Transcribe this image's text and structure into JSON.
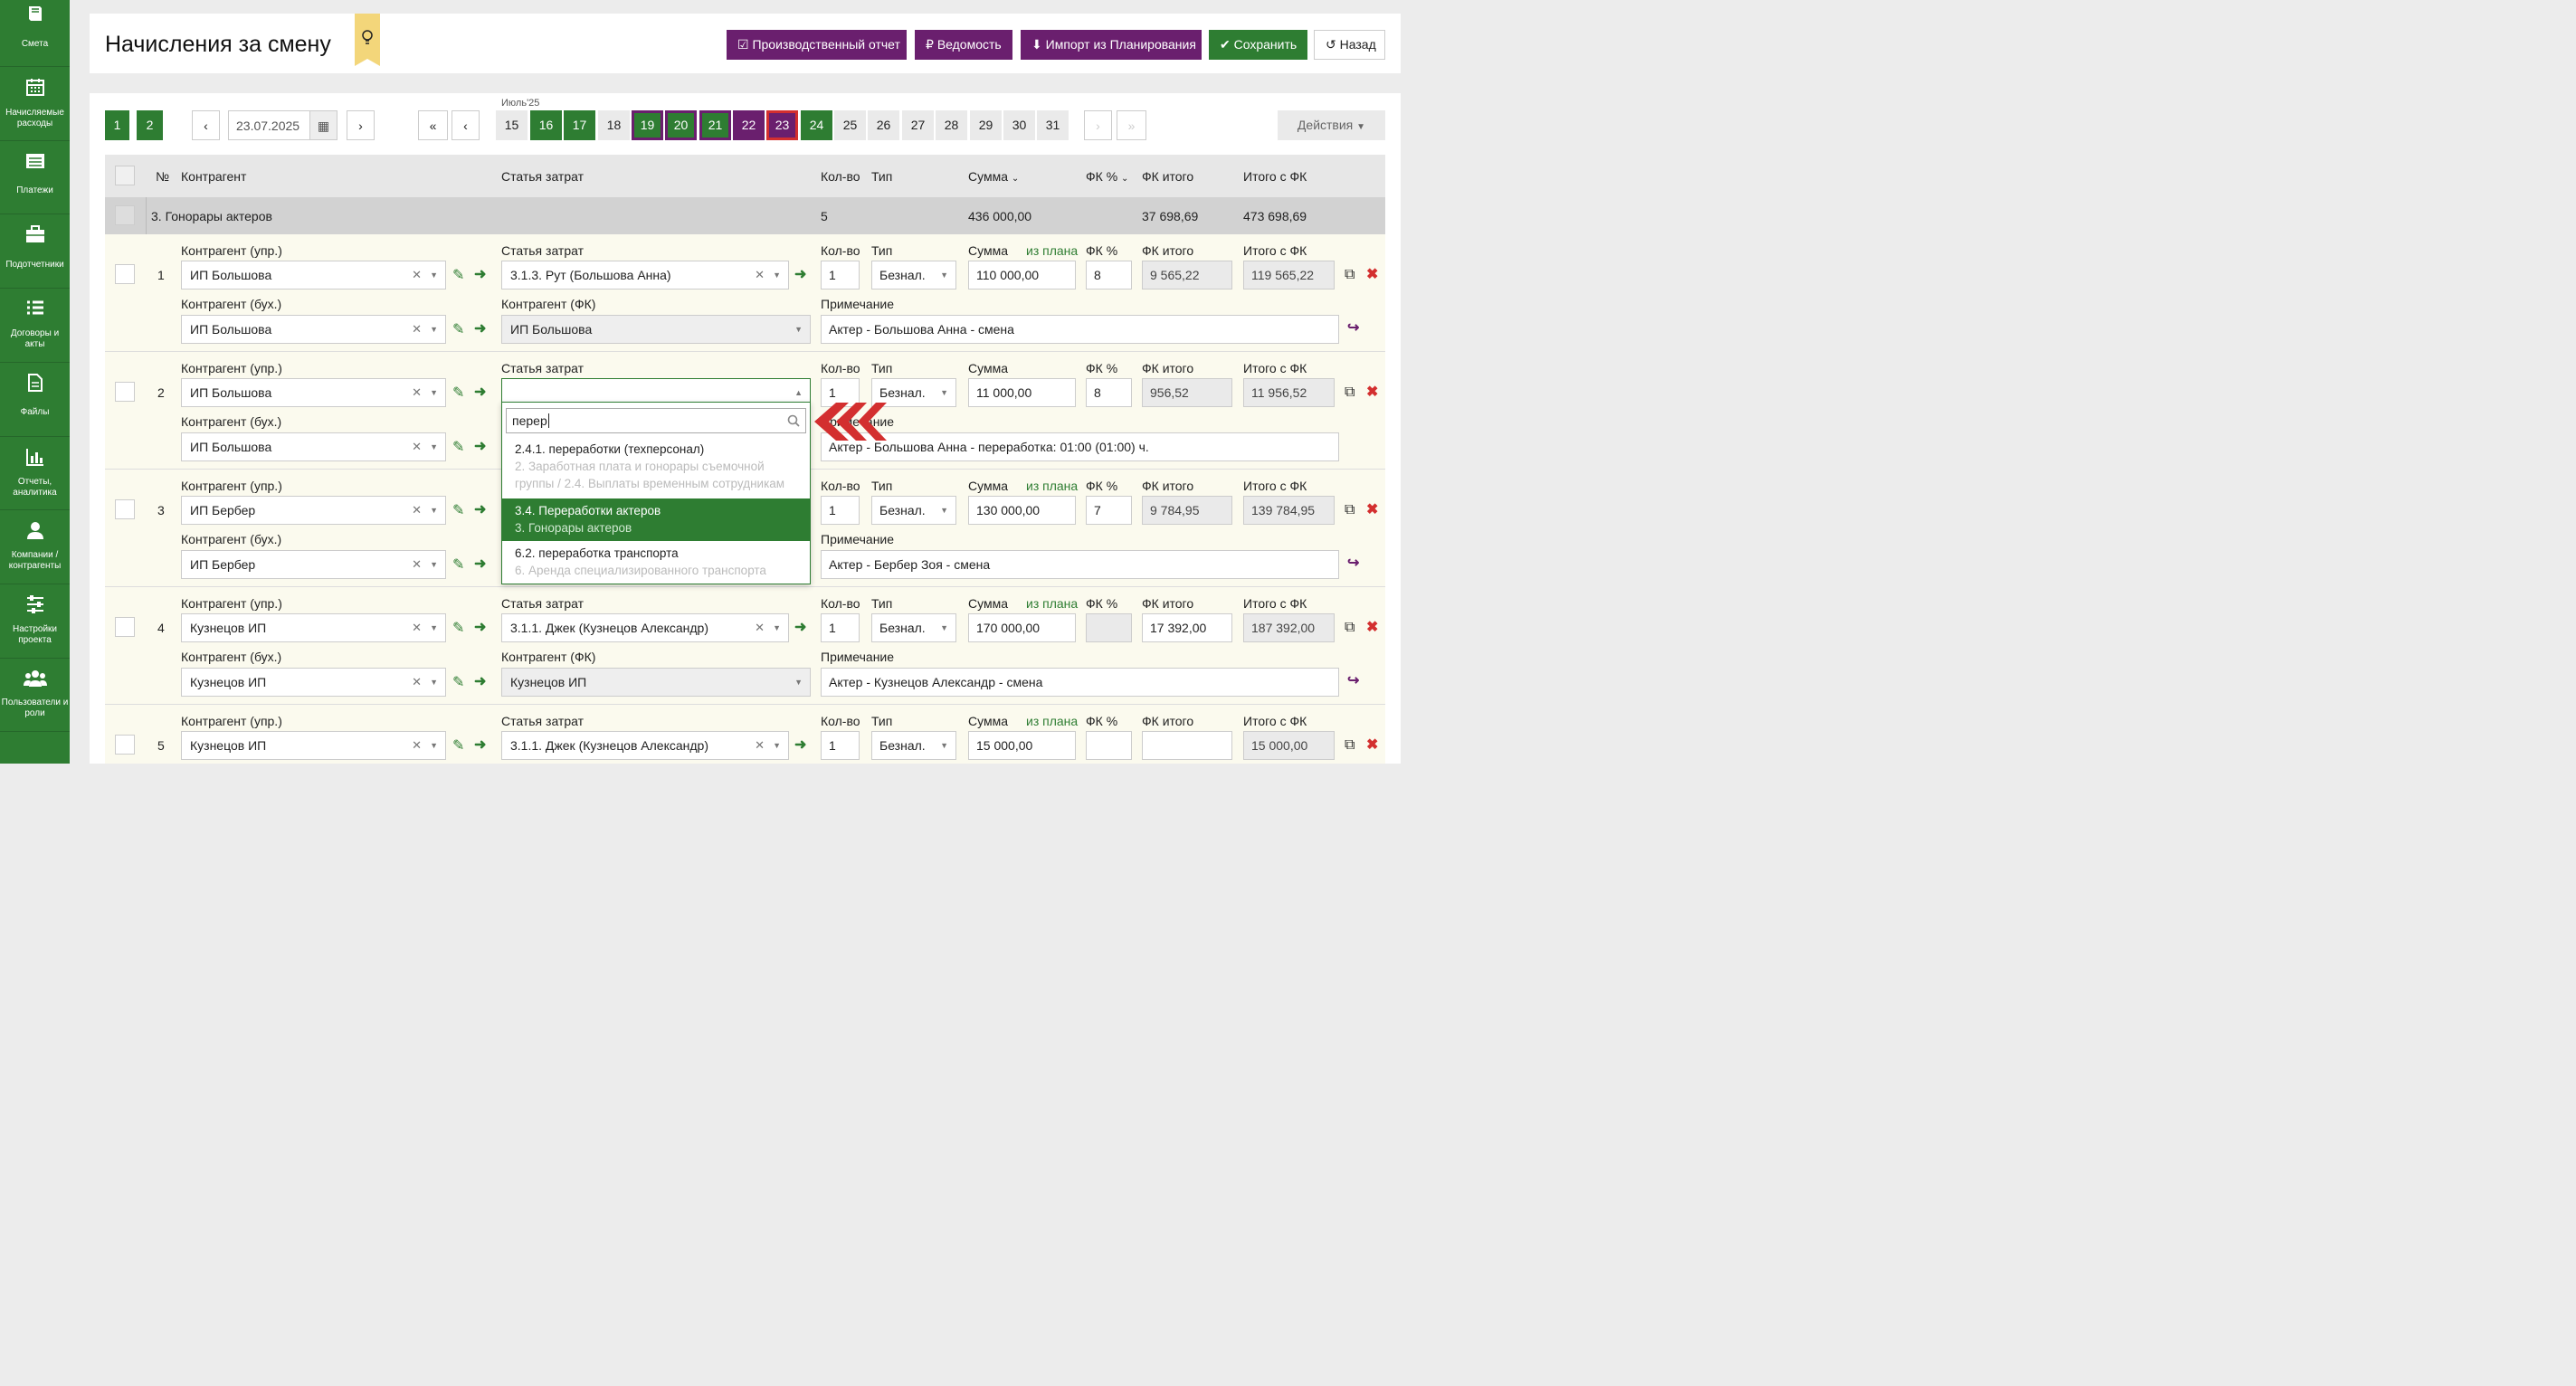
{
  "sidebar": {
    "items": [
      {
        "label": "Смета",
        "icon": "book-icon"
      },
      {
        "label": "Начисляемые расходы",
        "icon": "calendar-icon"
      },
      {
        "label": "Платежи",
        "icon": "list-icon"
      },
      {
        "label": "Подотчетники",
        "icon": "briefcase-icon"
      },
      {
        "label": "Договоры и акты",
        "icon": "list-icon"
      },
      {
        "label": "Файлы",
        "icon": "file-icon"
      },
      {
        "label": "Отчеты, аналитика",
        "icon": "chart-icon"
      },
      {
        "label": "Компании / контрагенты",
        "icon": "user-icon"
      },
      {
        "label": "Настройки проекта",
        "icon": "sliders-icon"
      },
      {
        "label": "Пользователи и роли",
        "icon": "users-icon"
      }
    ]
  },
  "header": {
    "title": "Начисления за смену",
    "btn_report": "Производственный отчет",
    "btn_sheet": "Ведомость",
    "btn_import": "Импорт из Планирования",
    "btn_save": "Сохранить",
    "btn_back": "Назад"
  },
  "toolbar": {
    "page1": "1",
    "page2": "2",
    "prev": "‹",
    "next": "›",
    "first": "«",
    "prev2": "‹",
    "next2": "›",
    "last": "»",
    "date": "23.07.2025",
    "month": "Июль'25",
    "actions": "Действия"
  },
  "days": [
    "15",
    "16",
    "17",
    "18",
    "19",
    "20",
    "21",
    "22",
    "23",
    "24",
    "25",
    "26",
    "27",
    "28",
    "29",
    "30",
    "31"
  ],
  "table": {
    "h_num": "№",
    "h_contractor": "Контрагент",
    "h_cost": "Статья затрат",
    "h_qty": "Кол-во",
    "h_type": "Тип",
    "h_sum": "Сумма",
    "h_fk": "ФК %",
    "h_fk_total": "ФК итого",
    "h_total": "Итого с ФК"
  },
  "group": {
    "name": "3. Гонорары актеров",
    "qty": "5",
    "sum": "436 000,00",
    "fk_total": "37 698,69",
    "total": "473 698,69"
  },
  "labels": {
    "contr_upr": "Контрагент (упр.)",
    "contr_buh": "Контрагент (бух.)",
    "cost": "Статья затрат",
    "contr_fk": "Контрагент (ФК)",
    "qty": "Кол-во",
    "type": "Тип",
    "sum": "Сумма",
    "from_plan": "из плана",
    "fk": "ФК %",
    "fk_total": "ФК итого",
    "total": "Итого с ФК",
    "note": "Примечание"
  },
  "rows": [
    {
      "n": "1",
      "upr": "ИП Большова",
      "buh": "ИП Большова",
      "cost": "3.1.3. Рут (Большова Анна)",
      "fkc": "ИП Большова",
      "qty": "1",
      "type": "Безнал.",
      "sum": "110 000,00",
      "fk": "8",
      "fk_total": "9 565,22",
      "total": "119 565,22",
      "note": "Актер - Большова Анна - смена"
    },
    {
      "n": "2",
      "upr": "ИП Большова",
      "buh": "ИП Большова",
      "cost": "",
      "fkc": "",
      "qty": "1",
      "type": "Безнал.",
      "sum": "11 000,00",
      "fk": "8",
      "fk_total": "956,52",
      "total": "11 956,52",
      "note": "Актер - Большова Анна - переработка: 01:00 (01:00) ч.",
      "note_label": "Примечание"
    },
    {
      "n": "3",
      "upr": "ИП Бербер",
      "buh": "ИП Бербер",
      "cost": "",
      "fkc": "",
      "qty": "1",
      "type": "Безнал.",
      "sum": "130 000,00",
      "fk": "7",
      "fk_total": "9 784,95",
      "total": "139 784,95",
      "note": "Актер - Бербер Зоя - смена"
    },
    {
      "n": "4",
      "upr": "Кузнецов ИП",
      "buh": "Кузнецов ИП",
      "cost": "3.1.1. Джек (Кузнецов Александр)",
      "fkc": "Кузнецов ИП",
      "qty": "1",
      "type": "Безнал.",
      "sum": "170 000,00",
      "fk": "",
      "fk_total": "17 392,00",
      "total": "187 392,00",
      "note": "Актер - Кузнецов Александр - смена"
    },
    {
      "n": "5",
      "upr": "Кузнецов ИП",
      "buh": "",
      "cost": "3.1.1. Джек (Кузнецов Александр)",
      "fkc": "",
      "qty": "1",
      "type": "Безнал.",
      "sum": "15 000,00",
      "fk": "",
      "fk_total": "",
      "total": "15 000,00",
      "note": ""
    }
  ],
  "dropdown": {
    "search": "перер",
    "items": [
      {
        "title": "2.4.1. переработки (техперсонал)",
        "path1": "2. Заработная плата и гонорары съемочной",
        "path2": "группы / 2.4. Выплаты временным сотрудникам"
      },
      {
        "title": "3.4. Переработки актеров",
        "path1": "3. Гонорары актеров"
      },
      {
        "title": "6.2. переработка транспорта",
        "path1": "6. Аренда специализированного транспорта"
      }
    ]
  },
  "colors": {
    "green": "#2e7d32",
    "purple": "#6a1f6e",
    "red": "#d32f2f",
    "bookmark": "#f3d67a"
  }
}
